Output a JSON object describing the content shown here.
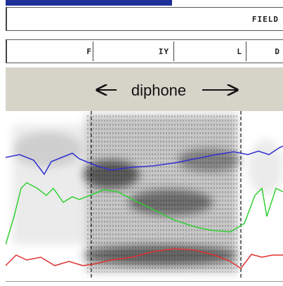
{
  "progress": {
    "fraction": 0.6,
    "color": "#1f2f98"
  },
  "word_tier": {
    "labels": [
      "FIELD"
    ]
  },
  "phone_tier": {
    "labels": [
      "F",
      "IY",
      "L",
      "D"
    ]
  },
  "annotation": {
    "text": "diphone"
  },
  "formants": {
    "colors": {
      "f1": "#e03030",
      "f2": "#30d030",
      "f3": "#3030d0"
    }
  }
}
